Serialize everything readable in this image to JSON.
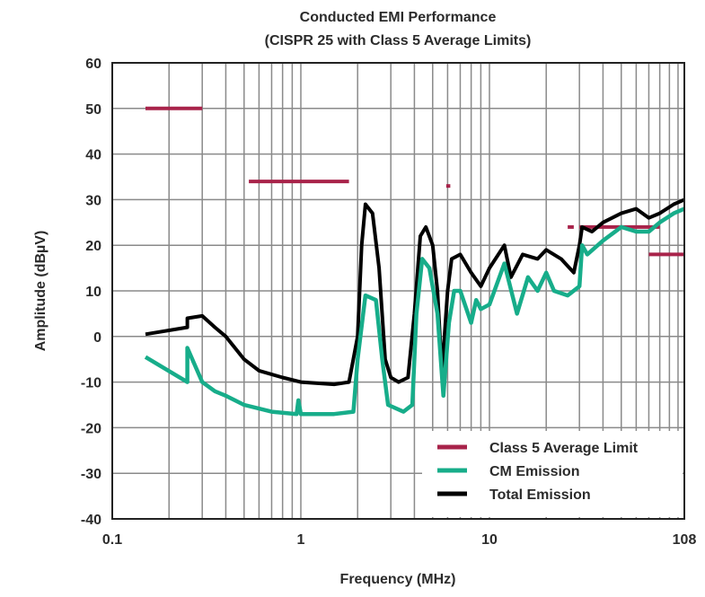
{
  "chart_data": {
    "type": "line",
    "title": "Conducted EMI Performance",
    "subtitle": "(CISPR 25 with Class 5 Average Limits)",
    "xlabel": "Frequency (MHz)",
    "ylabel": "Amplitude (dBµV)",
    "xscale": "log",
    "xlim": [
      0.1,
      108
    ],
    "ylim": [
      -40,
      60
    ],
    "xticks": [
      0.1,
      1,
      10,
      108
    ],
    "xtick_labels": [
      "0.1",
      "1",
      "10",
      "108"
    ],
    "yticks": [
      -40,
      -30,
      -20,
      -10,
      0,
      10,
      20,
      30,
      40,
      50,
      60
    ],
    "ytick_labels": [
      "-40",
      "-30",
      "-20",
      "-10",
      "0",
      "10",
      "20",
      "30",
      "40",
      "50",
      "60"
    ],
    "grid": true,
    "legend_placement": "bottom-right",
    "series": [
      {
        "name": "Class 5 Average Limit",
        "color": "#a8234a",
        "segments": [
          {
            "f": [
              0.15,
              0.3
            ],
            "y": 50
          },
          {
            "f": [
              0.53,
              1.8
            ],
            "y": 34
          },
          {
            "f": [
              5.9,
              6.2
            ],
            "y": 33
          },
          {
            "f": [
              26,
              28
            ],
            "y": 24
          },
          {
            "f": [
              30,
              80
            ],
            "y": 24
          },
          {
            "f": [
              70,
              108
            ],
            "y": 18
          }
        ]
      },
      {
        "name": "CM Emission",
        "color": "#17ad8a",
        "x": [
          0.15,
          0.25,
          0.25,
          0.3,
          0.35,
          0.4,
          0.5,
          0.7,
          0.95,
          0.97,
          1.0,
          1.5,
          1.9,
          2.0,
          2.2,
          2.5,
          2.7,
          2.9,
          3.5,
          3.9,
          4.1,
          4.4,
          4.8,
          5.3,
          5.7,
          6.1,
          6.5,
          7,
          8,
          8.5,
          9,
          10,
          12,
          14,
          16,
          18,
          20,
          22,
          26,
          30,
          31,
          33,
          40,
          50,
          60,
          70,
          80,
          95,
          108
        ],
        "y": [
          -4.5,
          -10,
          -2.5,
          -10,
          -12,
          -13,
          -15,
          -16.5,
          -17,
          -14,
          -17,
          -17,
          -16.5,
          -5,
          9,
          8,
          -5,
          -15,
          -16.5,
          -15,
          5,
          17,
          15,
          5,
          -13,
          3,
          10,
          10,
          3,
          8,
          6,
          7,
          16,
          5,
          13,
          10,
          14,
          10,
          9,
          11,
          20,
          18,
          21,
          24,
          23,
          23,
          25,
          27,
          28
        ]
      },
      {
        "name": "Total Emission",
        "color": "#000000",
        "x": [
          0.15,
          0.25,
          0.25,
          0.3,
          0.35,
          0.4,
          0.5,
          0.6,
          0.8,
          1.0,
          1.5,
          1.8,
          2.0,
          2.1,
          2.2,
          2.4,
          2.6,
          2.8,
          3.0,
          3.3,
          3.7,
          4.0,
          4.3,
          4.6,
          5.0,
          5.3,
          5.6,
          6.0,
          6.3,
          7,
          8,
          9,
          10,
          12,
          13,
          15,
          18,
          20,
          24,
          28,
          30,
          31,
          35,
          40,
          50,
          60,
          70,
          80,
          95,
          108
        ],
        "y": [
          0.5,
          2,
          4,
          4.5,
          2,
          0,
          -5,
          -7.5,
          -9,
          -10,
          -10.5,
          -10,
          0,
          20,
          29,
          27,
          15,
          -5,
          -9,
          -10,
          -9,
          5,
          22,
          24,
          20,
          10,
          -8,
          10,
          17,
          18,
          14,
          11,
          15,
          20,
          13,
          18,
          17,
          19,
          17,
          14,
          20,
          24,
          23,
          25,
          27,
          28,
          26,
          27,
          29,
          30
        ]
      }
    ]
  }
}
